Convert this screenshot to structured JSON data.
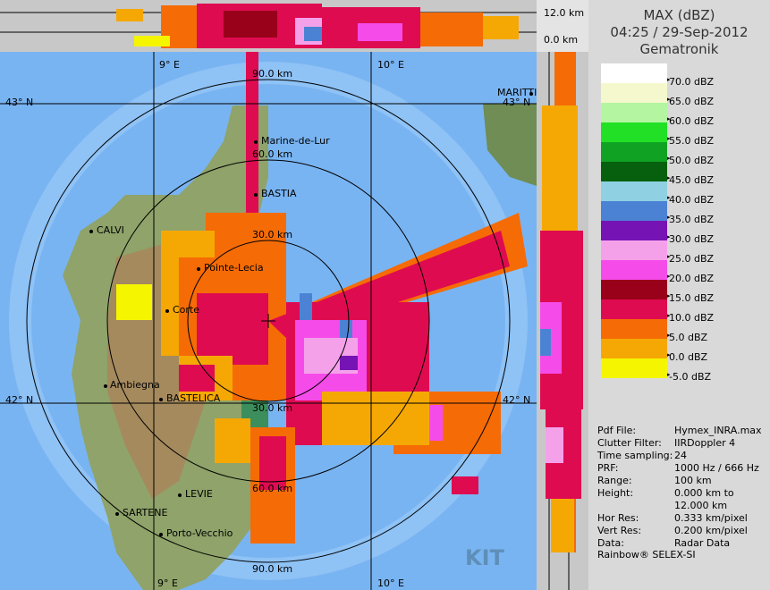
{
  "header": {
    "title": "MAX (dBZ)",
    "datetime": "04:25 / 29-Sep-2012",
    "source": "Gematronik"
  },
  "top_strip": {
    "height_top": "12.0 km",
    "height_bottom": "0.0 km"
  },
  "map": {
    "lon_labels": [
      "9° E",
      "10° E",
      "9° E",
      "10° E"
    ],
    "lat_labels": [
      "43° N",
      "43° N",
      "42° N",
      "42° N"
    ],
    "range_labels": [
      "90.0 km",
      "60.0 km",
      "30.0 km",
      "30.0 km",
      "60.0 km",
      "90.0 km"
    ],
    "cities": [
      "CALVI",
      "Corte",
      "Pointe-Lecia",
      "BASTIA",
      "Marine-de-Lur",
      "Ambiegna",
      "BASTELICA",
      "LEVIE",
      "SARTENE",
      "Porto-Vecchio",
      "MARITTIMA"
    ],
    "logo_text": "KIT"
  },
  "legend": [
    {
      "label": "70.0 dBZ",
      "color": "#ffffff"
    },
    {
      "label": "65.0 dBZ",
      "color": "#f5f8cc"
    },
    {
      "label": "60.0 dBZ",
      "color": "#b3f5a1"
    },
    {
      "label": "55.0 dBZ",
      "color": "#22e026"
    },
    {
      "label": "50.0 dBZ",
      "color": "#10a323"
    },
    {
      "label": "45.0 dBZ",
      "color": "#06600e"
    },
    {
      "label": "40.0 dBZ",
      "color": "#8fd1e3"
    },
    {
      "label": "35.0 dBZ",
      "color": "#4c82d4"
    },
    {
      "label": "30.0 dBZ",
      "color": "#7613b5"
    },
    {
      "label": "25.0 dBZ",
      "color": "#f5a1ea"
    },
    {
      "label": "20.0 dBZ",
      "color": "#f54ce9"
    },
    {
      "label": "15.0 dBZ",
      "color": "#99001a"
    },
    {
      "label": "10.0 dBZ",
      "color": "#df0b51"
    },
    {
      "label": "5.0 dBZ",
      "color": "#f56b06"
    },
    {
      "label": "0.0 dBZ",
      "color": "#f5a804"
    },
    {
      "label": "-5.0 dBZ",
      "color": "#f5f500"
    }
  ],
  "info": [
    {
      "key": "Pdf File:",
      "value": "Hymex_INRA.max"
    },
    {
      "key": "Clutter Filter:",
      "value": "IIRDoppler 4"
    },
    {
      "key": "Time sampling:",
      "value": "24"
    },
    {
      "key": "PRF:",
      "value": "1000 Hz / 666 Hz"
    },
    {
      "key": "Range:",
      "value": "100 km"
    },
    {
      "key": "Height:",
      "value": "0.000 km to"
    },
    {
      "key": "",
      "value": "12.000 km"
    },
    {
      "key": "Hor Res:",
      "value": "0.333 km/pixel"
    },
    {
      "key": "Vert Res:",
      "value": "0.200 km/pixel"
    },
    {
      "key": "Data:",
      "value": "Radar Data"
    }
  ],
  "footer": "Rainbow® SELEX-SI"
}
